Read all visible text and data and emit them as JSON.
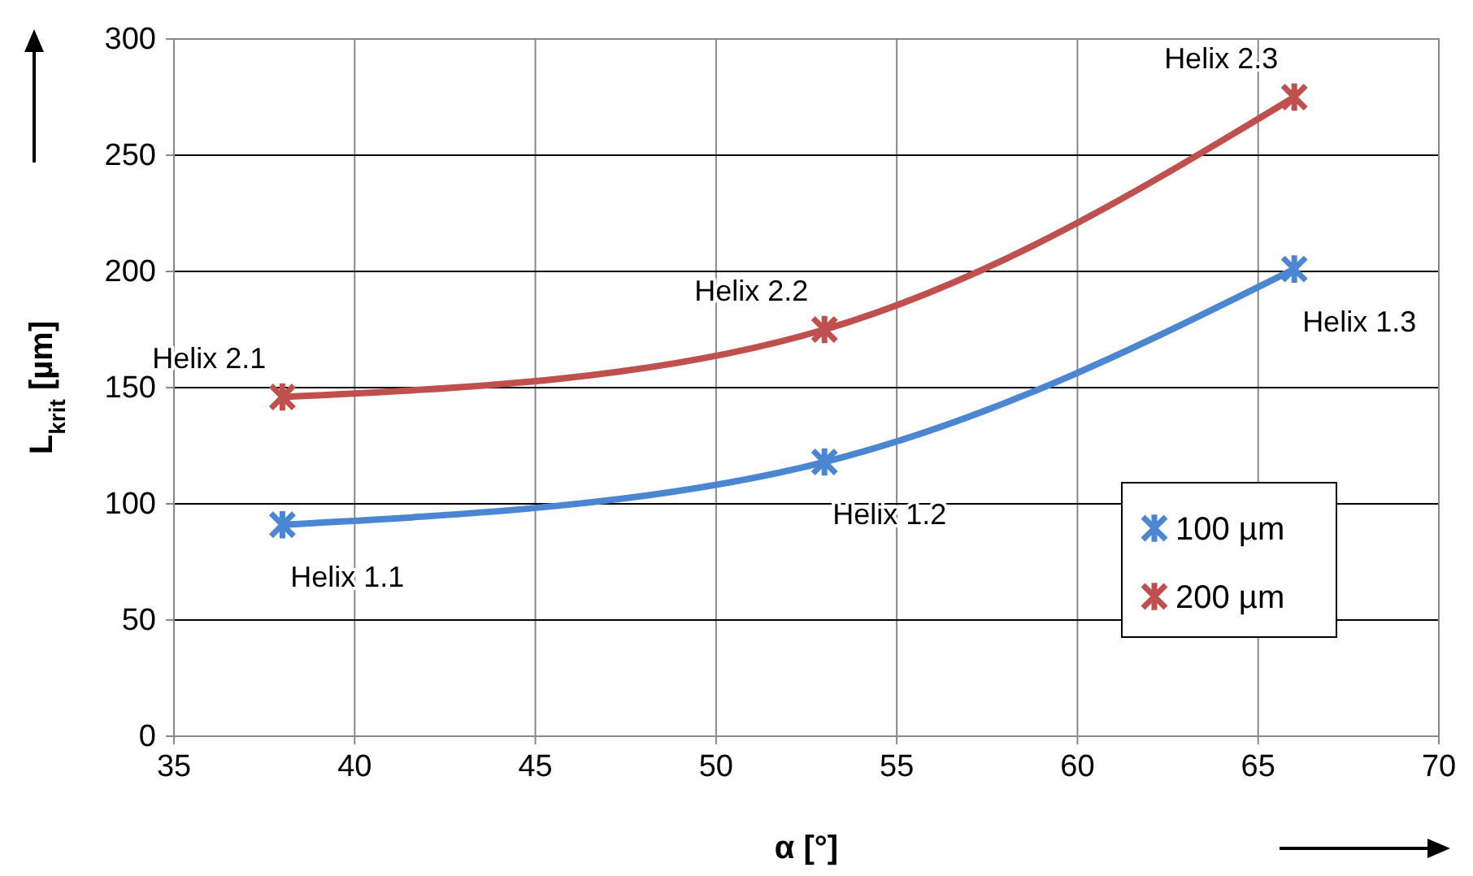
{
  "chart_data": {
    "type": "line",
    "xlabel": "α [°]",
    "ylabel": "L$_{krit}$ [µm]",
    "xlim": [
      35,
      70
    ],
    "xticks": [
      35,
      40,
      45,
      50,
      55,
      60,
      65,
      70
    ],
    "ylim": [
      0,
      300
    ],
    "yticks": [
      0,
      50,
      100,
      150,
      200,
      250,
      300
    ],
    "grid": true,
    "legend": "right",
    "marker": "cross",
    "line_style": "solid",
    "series": [
      {
        "name": "100 µm",
        "color": "#4a86d2",
        "x": [
          38,
          53,
          66
        ],
        "values": [
          91,
          118,
          201
        ]
      },
      {
        "name": "200 µm",
        "color": "#c0504d",
        "x": [
          38,
          53,
          66
        ],
        "values": [
          146,
          175,
          275
        ]
      }
    ],
    "annotations": [
      {
        "text": "Helix 2.1",
        "x": 38,
        "y": 146
      },
      {
        "text": "Helix 2.2",
        "x": 53,
        "y": 175
      },
      {
        "text": "Helix 2.3",
        "x": 66,
        "y": 275
      },
      {
        "text": "Helix 1.1",
        "x": 38,
        "y": 91
      },
      {
        "text": "Helix 1.2",
        "x": 53,
        "y": 118
      },
      {
        "text": "Helix 1.3",
        "x": 66,
        "y": 201
      }
    ]
  }
}
